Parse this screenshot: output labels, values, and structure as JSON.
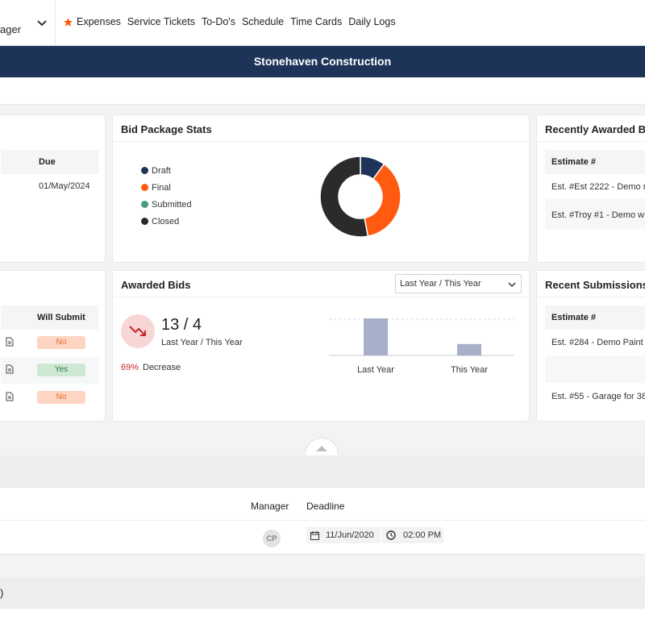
{
  "topbar": {
    "role_text": "ager",
    "nav": [
      "Expenses",
      "Service Tickets",
      "To-Do's",
      "Schedule",
      "Time Cards",
      "Daily Logs"
    ]
  },
  "banner": {
    "title": "Stonehaven Construction"
  },
  "left_top": {
    "col_due": "Due",
    "row_due": "01/May/2024"
  },
  "bid_stats": {
    "title": "Bid Package Stats",
    "chart_data": {
      "type": "pie",
      "categories": [
        "Draft",
        "Final",
        "Submitted",
        "Closed"
      ],
      "values": [
        10,
        37,
        0,
        53
      ],
      "colors": [
        "#1d3458",
        "#ff5a0f",
        "#4a9a85",
        "#2b2b2b"
      ]
    }
  },
  "recent_awarded": {
    "title": "Recently Awarded Bi",
    "col": "Estimate #",
    "rows": [
      "Est. #Est 2222 - Demo r",
      "Est. #Troy #1 - Demo w"
    ]
  },
  "left_mid": {
    "col": "Will Submit",
    "rows": [
      "No",
      "Yes",
      "No"
    ]
  },
  "awarded_bids": {
    "title": "Awarded Bids",
    "select_value": "Last Year / This Year",
    "ratio": "13 / 4",
    "ratio_caption": "Last Year / This Year",
    "pct": "69%",
    "change": "Decrease",
    "chart_data": {
      "type": "bar",
      "categories": [
        "Last Year",
        "This Year"
      ],
      "values": [
        13,
        4
      ],
      "color": "#a7b0c8"
    }
  },
  "recent_submissions": {
    "title": "Recent Submissions",
    "col": "Estimate #",
    "rows": [
      "Est. #284 - Demo Paint",
      "Est. #55 - Garage for 38"
    ]
  },
  "bottom_table": {
    "col_manager": "Manager",
    "col_deadline": "Deadline",
    "avatar": "CP",
    "date": "11/Jun/2020",
    "time": "02:00 PM"
  },
  "bottom_bar": {
    "text": ")"
  },
  "icons": {
    "nav_star": "star-icon",
    "trend": "trending-down-icon",
    "doc": "document-icon"
  }
}
